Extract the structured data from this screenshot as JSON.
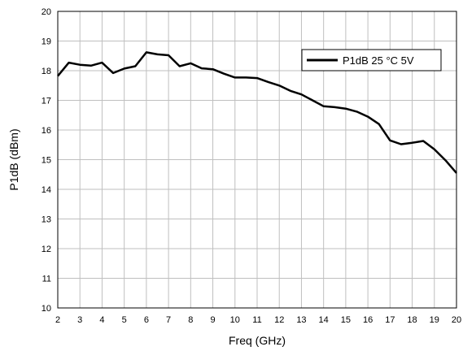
{
  "chart_data": {
    "type": "line",
    "xlabel": "Freq (GHz)",
    "ylabel": "P1dB (dBm)",
    "xlim": [
      2,
      20
    ],
    "ylim": [
      10,
      20
    ],
    "xticks": [
      2,
      3,
      4,
      5,
      6,
      7,
      8,
      9,
      10,
      11,
      12,
      13,
      14,
      15,
      16,
      17,
      18,
      19,
      20
    ],
    "yticks": [
      10,
      11,
      12,
      13,
      14,
      15,
      16,
      17,
      18,
      19,
      20
    ],
    "grid": true,
    "legend_position": "top-right",
    "series": [
      {
        "name": "P1dB 25 °C 5V",
        "color": "#000000",
        "x": [
          2,
          2.5,
          3,
          3.5,
          4,
          4.5,
          5,
          5.5,
          6,
          6.5,
          7,
          7.5,
          8,
          8.5,
          9,
          9.5,
          10,
          10.5,
          11,
          11.5,
          12,
          12.5,
          13,
          13.5,
          14,
          14.5,
          15,
          15.5,
          16,
          16.5,
          17,
          17.5,
          18,
          18.5,
          19,
          19.5,
          20
        ],
        "y": [
          17.82,
          18.27,
          18.2,
          18.17,
          18.27,
          17.92,
          18.07,
          18.15,
          18.62,
          18.55,
          18.52,
          18.15,
          18.25,
          18.08,
          18.05,
          17.9,
          17.77,
          17.77,
          17.75,
          17.62,
          17.5,
          17.32,
          17.2,
          17.0,
          16.8,
          16.77,
          16.72,
          16.62,
          16.45,
          16.2,
          15.65,
          15.52,
          15.57,
          15.63,
          15.35,
          14.98,
          14.55
        ]
      }
    ]
  }
}
